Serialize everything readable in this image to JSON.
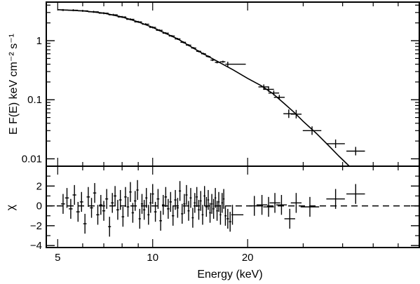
{
  "chart_data": [
    {
      "type": "line",
      "panel": "spectrum",
      "title": "",
      "xlabel": "",
      "ylabel": "E F(E) keV  cm⁻² s⁻¹",
      "x_scale": "log",
      "y_scale": "log",
      "xlim": [
        4.6,
        70
      ],
      "ylim": [
        0.0075,
        4.5
      ],
      "y_ticks": [
        {
          "value": 1,
          "label": "1"
        },
        {
          "value": 0.1,
          "label": "0.1"
        },
        {
          "value": 0.01,
          "label": "0.01"
        }
      ],
      "grid": false,
      "series": [
        {
          "style": "crosses",
          "points": [
            {
              "x": 5.2,
              "y": 3.3
            },
            {
              "x": 5.6,
              "y": 3.28
            },
            {
              "x": 6.0,
              "y": 3.2
            },
            {
              "x": 6.5,
              "y": 3.08
            },
            {
              "x": 7.0,
              "y": 2.92
            },
            {
              "x": 7.5,
              "y": 2.74
            },
            {
              "x": 8.0,
              "y": 2.52
            },
            {
              "x": 8.5,
              "y": 2.3
            },
            {
              "x": 9.0,
              "y": 2.08
            },
            {
              "x": 9.5,
              "y": 1.9
            },
            {
              "x": 10.0,
              "y": 1.68
            },
            {
              "x": 10.5,
              "y": 1.5
            },
            {
              "x": 11.0,
              "y": 1.34
            },
            {
              "x": 11.5,
              "y": 1.2
            },
            {
              "x": 12.0,
              "y": 1.07
            },
            {
              "x": 12.5,
              "y": 0.94
            },
            {
              "x": 13.0,
              "y": 0.84
            },
            {
              "x": 13.5,
              "y": 0.75
            },
            {
              "x": 14.0,
              "y": 0.66
            },
            {
              "x": 14.5,
              "y": 0.6
            },
            {
              "x": 15.0,
              "y": 0.54
            },
            {
              "x": 15.5,
              "y": 0.47
            },
            {
              "x": 16.0,
              "y": 0.43
            },
            {
              "x": 16.7,
              "y": 0.44
            },
            {
              "x": 17.3,
              "y": 0.4
            },
            {
              "x": 22.5,
              "y": 0.165
            },
            {
              "x": 23.3,
              "y": 0.15
            },
            {
              "x": 24.2,
              "y": 0.13
            },
            {
              "x": 25.2,
              "y": 0.11
            },
            {
              "x": 27.0,
              "y": 0.058
            },
            {
              "x": 28.5,
              "y": 0.057
            },
            {
              "x": 32.0,
              "y": 0.03
            },
            {
              "x": 38.0,
              "y": 0.018
            },
            {
              "x": 44.0,
              "y": 0.0135
            }
          ]
        },
        {
          "style": "solid-model",
          "points": [
            {
              "x": 5.0,
              "y": 3.35
            },
            {
              "x": 6.0,
              "y": 3.2
            },
            {
              "x": 7.0,
              "y": 2.93
            },
            {
              "x": 8.0,
              "y": 2.52
            },
            {
              "x": 9.0,
              "y": 2.08
            },
            {
              "x": 10.0,
              "y": 1.68
            },
            {
              "x": 12.0,
              "y": 1.07
            },
            {
              "x": 14.0,
              "y": 0.66
            },
            {
              "x": 16.0,
              "y": 0.45
            },
            {
              "x": 18.0,
              "y": 0.32
            },
            {
              "x": 20.0,
              "y": 0.23
            },
            {
              "x": 22.0,
              "y": 0.175
            },
            {
              "x": 24.0,
              "y": 0.128
            },
            {
              "x": 26.0,
              "y": 0.088
            },
            {
              "x": 28.0,
              "y": 0.062
            },
            {
              "x": 30.0,
              "y": 0.043
            },
            {
              "x": 33.0,
              "y": 0.027
            },
            {
              "x": 36.0,
              "y": 0.017
            },
            {
              "x": 39.0,
              "y": 0.011
            },
            {
              "x": 42.0,
              "y": 0.0075
            }
          ]
        }
      ]
    },
    {
      "type": "scatter",
      "panel": "residuals",
      "title": "",
      "xlabel": "Energy (keV)",
      "ylabel": "χ",
      "x_scale": "log",
      "xlim": [
        4.6,
        70
      ],
      "ylim": [
        -4.2,
        4.0
      ],
      "x_ticks": [
        {
          "value": 5,
          "label": "5"
        },
        {
          "value": 10,
          "label": "10"
        },
        {
          "value": 20,
          "label": "20"
        }
      ],
      "y_ticks": [
        {
          "value": 2,
          "label": "2"
        },
        {
          "value": 0,
          "label": "0"
        },
        {
          "value": -2,
          "label": "−2"
        },
        {
          "value": -4,
          "label": "−4"
        }
      ],
      "reference_line": 0,
      "grid": false,
      "points": [
        {
          "x": 5.2,
          "y": 0.2
        },
        {
          "x": 5.35,
          "y": 0.8
        },
        {
          "x": 5.5,
          "y": -0.3
        },
        {
          "x": 5.65,
          "y": 1.1
        },
        {
          "x": 5.8,
          "y": -0.6
        },
        {
          "x": 5.95,
          "y": 0.4
        },
        {
          "x": 6.1,
          "y": -1.8
        },
        {
          "x": 6.25,
          "y": 0.9
        },
        {
          "x": 6.4,
          "y": -0.2
        },
        {
          "x": 6.55,
          "y": 1.3
        },
        {
          "x": 6.7,
          "y": -0.9
        },
        {
          "x": 6.85,
          "y": 0.1
        },
        {
          "x": 7.0,
          "y": -0.5
        },
        {
          "x": 7.15,
          "y": 0.7
        },
        {
          "x": 7.3,
          "y": -2.1
        },
        {
          "x": 7.45,
          "y": 0.3
        },
        {
          "x": 7.6,
          "y": 1.0
        },
        {
          "x": 7.75,
          "y": -0.4
        },
        {
          "x": 7.9,
          "y": 0.6
        },
        {
          "x": 8.05,
          "y": -1.1
        },
        {
          "x": 8.2,
          "y": 0.9
        },
        {
          "x": 8.35,
          "y": -0.1
        },
        {
          "x": 8.5,
          "y": 1.4
        },
        {
          "x": 8.65,
          "y": -0.7
        },
        {
          "x": 8.8,
          "y": 0.5
        },
        {
          "x": 8.95,
          "y": 1.6
        },
        {
          "x": 9.1,
          "y": -1.3
        },
        {
          "x": 9.25,
          "y": 0.2
        },
        {
          "x": 9.4,
          "y": -0.4
        },
        {
          "x": 9.55,
          "y": 0.8
        },
        {
          "x": 9.7,
          "y": -0.9
        },
        {
          "x": 9.85,
          "y": 0.3
        },
        {
          "x": 10.0,
          "y": 1.2
        },
        {
          "x": 10.2,
          "y": -0.6
        },
        {
          "x": 10.4,
          "y": 0.7
        },
        {
          "x": 10.6,
          "y": -1.5
        },
        {
          "x": 10.8,
          "y": 0.1
        },
        {
          "x": 11.0,
          "y": 0.9
        },
        {
          "x": 11.2,
          "y": -0.3
        },
        {
          "x": 11.4,
          "y": 0.4
        },
        {
          "x": 11.6,
          "y": -1.0
        },
        {
          "x": 11.8,
          "y": 0.6
        },
        {
          "x": 12.0,
          "y": -0.2
        },
        {
          "x": 12.2,
          "y": 1.5
        },
        {
          "x": 12.4,
          "y": -0.8
        },
        {
          "x": 12.6,
          "y": 0.2
        },
        {
          "x": 12.8,
          "y": 1.1
        },
        {
          "x": 13.0,
          "y": -0.5
        },
        {
          "x": 13.2,
          "y": 0.8
        },
        {
          "x": 13.4,
          "y": -1.2
        },
        {
          "x": 13.6,
          "y": 0.3
        },
        {
          "x": 13.8,
          "y": 0.9
        },
        {
          "x": 14.0,
          "y": -0.4
        },
        {
          "x": 14.2,
          "y": 0.5
        },
        {
          "x": 14.4,
          "y": -0.9
        },
        {
          "x": 14.6,
          "y": 1.0
        },
        {
          "x": 14.8,
          "y": -0.1
        },
        {
          "x": 15.0,
          "y": 0.6
        },
        {
          "x": 15.2,
          "y": -0.7
        },
        {
          "x": 15.4,
          "y": 0.2
        },
        {
          "x": 15.6,
          "y": -0.3
        },
        {
          "x": 15.8,
          "y": 0.8
        },
        {
          "x": 16.0,
          "y": -0.5
        },
        {
          "x": 16.2,
          "y": 0.4
        },
        {
          "x": 16.4,
          "y": -0.9
        },
        {
          "x": 16.6,
          "y": 0.3
        },
        {
          "x": 16.8,
          "y": 0.7
        },
        {
          "x": 17.0,
          "y": -1.0
        },
        {
          "x": 17.3,
          "y": -1.3
        },
        {
          "x": 17.6,
          "y": -1.6
        },
        {
          "x": 17.9,
          "y": -0.9
        },
        {
          "x": 21.0,
          "y": 0.0
        },
        {
          "x": 22.2,
          "y": 0.1
        },
        {
          "x": 23.3,
          "y": -0.1
        },
        {
          "x": 24.4,
          "y": 0.3
        },
        {
          "x": 25.6,
          "y": 0.1
        },
        {
          "x": 27.2,
          "y": -1.3
        },
        {
          "x": 28.5,
          "y": 0.3
        },
        {
          "x": 31.5,
          "y": -0.1
        },
        {
          "x": 38.0,
          "y": 0.7
        },
        {
          "x": 44.0,
          "y": 1.2
        }
      ]
    }
  ]
}
